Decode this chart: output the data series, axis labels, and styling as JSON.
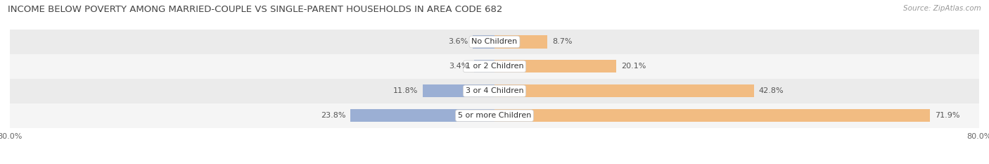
{
  "title": "INCOME BELOW POVERTY AMONG MARRIED-COUPLE VS SINGLE-PARENT HOUSEHOLDS IN AREA CODE 682",
  "source": "Source: ZipAtlas.com",
  "categories": [
    "No Children",
    "1 or 2 Children",
    "3 or 4 Children",
    "5 or more Children"
  ],
  "married_values": [
    3.6,
    3.4,
    11.8,
    23.8
  ],
  "single_values": [
    8.7,
    20.1,
    42.8,
    71.9
  ],
  "married_color": "#9bafd4",
  "single_color": "#f2bc82",
  "row_bg_colors": [
    "#ebebeb",
    "#f5f5f5",
    "#ebebeb",
    "#f5f5f5"
  ],
  "axis_left_label": "80.0%",
  "axis_right_label": "80.0%",
  "x_min": -80,
  "x_max": 80,
  "title_fontsize": 9.5,
  "label_fontsize": 8,
  "value_fontsize": 8,
  "bar_height": 0.52,
  "figsize": [
    14.06,
    2.33
  ],
  "dpi": 100
}
